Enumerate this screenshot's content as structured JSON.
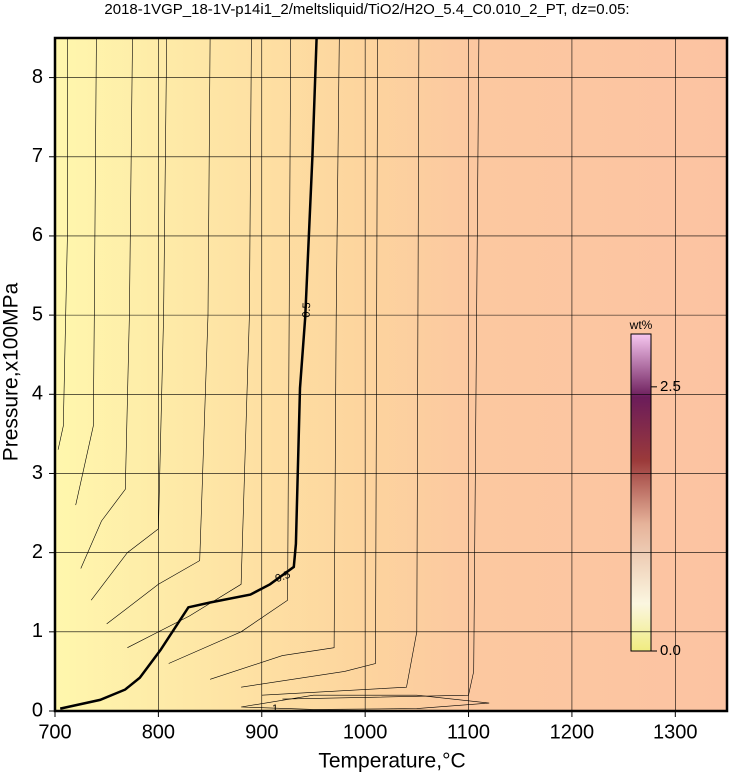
{
  "chart_data": {
    "type": "contour",
    "title": "2018-1VGP_18-1V-p14i1_2/meltsliquid/TiO2/H2O_5.4_C0.010_2_PT, dz=0.05:",
    "x_label": "Temperature,°C",
    "y_label": "Pressure,x100MPa",
    "xlim": [
      700,
      1350
    ],
    "ylim": [
      0,
      8.5
    ],
    "xticks": [
      700,
      800,
      900,
      1000,
      1100,
      1200,
      1300
    ],
    "yticks": [
      0,
      1,
      2,
      3,
      4,
      5,
      6,
      7,
      8
    ],
    "grid": true,
    "contours": [
      {
        "level": 0.5,
        "x": [
          705,
          743.6,
          767.8,
          782,
          802,
          829,
          850,
          889,
          908,
          931,
          933,
          937,
          942,
          949,
          953
        ],
        "y": [
          0.03,
          0.14,
          0.27,
          0.42,
          0.77,
          1.31,
          1.37,
          1.47,
          1.6,
          1.82,
          2.11,
          4.08,
          4.97,
          7.0,
          8.5
        ]
      },
      {
        "level": 1,
        "x": [
          880,
          950,
          1050,
          1120,
          1050,
          950,
          880
        ],
        "y": [
          0.05,
          0.02,
          0.03,
          0.1,
          0.2,
          0.2,
          0.05
        ]
      },
      {
        "x": [
          703,
          708,
          712,
          712
        ],
        "y": [
          3.3,
          3.6,
          6,
          8.5
        ]
      },
      {
        "x": [
          720,
          737,
          738,
          740
        ],
        "y": [
          2.6,
          3.6,
          5,
          8.5
        ]
      },
      {
        "x": [
          725,
          745,
          768,
          772,
          775
        ],
        "y": [
          1.8,
          2.4,
          2.8,
          5,
          8.5
        ]
      },
      {
        "x": [
          735,
          770,
          800,
          805,
          808
        ],
        "y": [
          1.4,
          2.0,
          2.3,
          5,
          8.5
        ]
      },
      {
        "x": [
          750,
          800,
          840,
          848,
          850
        ],
        "y": [
          1.1,
          1.6,
          1.9,
          5,
          8.5
        ]
      },
      {
        "x": [
          770,
          830,
          880,
          888,
          890
        ],
        "y": [
          0.8,
          1.2,
          1.6,
          5,
          8.5
        ]
      },
      {
        "x": [
          810,
          880,
          925,
          928
        ],
        "y": [
          0.6,
          1.0,
          1.4,
          8.5
        ]
      },
      {
        "x": [
          850,
          920,
          970,
          972,
          975
        ],
        "y": [
          0.4,
          0.7,
          0.8,
          5,
          8.5
        ]
      },
      {
        "x": [
          880,
          980,
          1010,
          1012
        ],
        "y": [
          0.3,
          0.5,
          0.6,
          8.5
        ]
      },
      {
        "x": [
          900,
          1040,
          1050,
          1052
        ],
        "y": [
          0.2,
          0.3,
          1,
          8.5
        ]
      },
      {
        "x": [
          920,
          1100,
          1105,
          1110
        ],
        "y": [
          0.15,
          0.2,
          0.5,
          8.5
        ]
      }
    ],
    "colorbar": {
      "label": "wt%",
      "lim": [
        0,
        3
      ],
      "ticks": [
        {
          "value": 0,
          "label": "0.0"
        },
        2.5
      ]
    }
  }
}
